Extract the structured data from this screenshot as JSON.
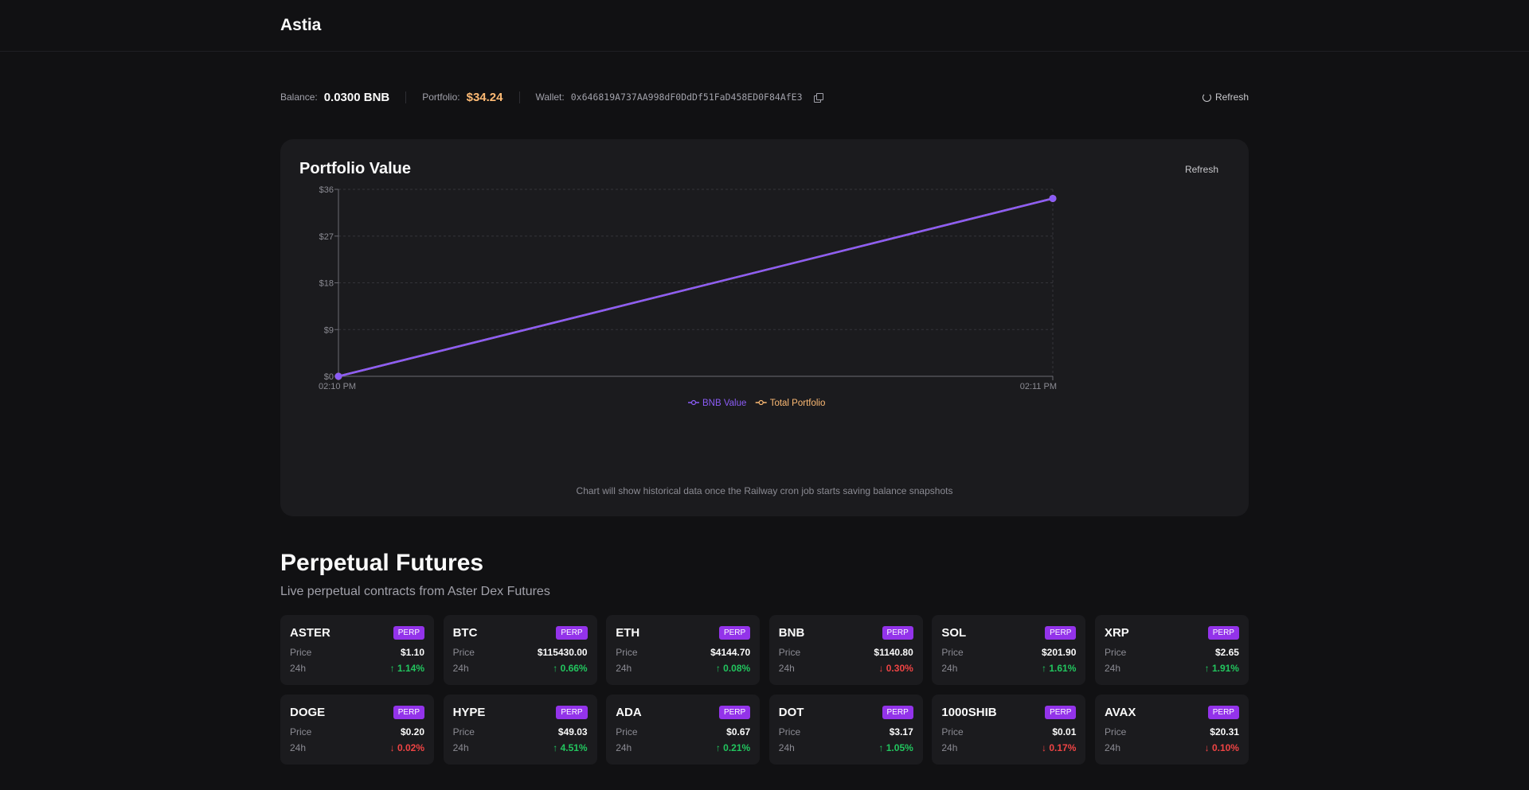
{
  "app": {
    "title": "Astia"
  },
  "stats": {
    "balance_label": "Balance:",
    "balance_value": "0.0300 BNB",
    "portfolio_label": "Portfolio:",
    "portfolio_value": "$34.24",
    "wallet_label": "Wallet:",
    "wallet_address": "0x646819A737AA998dF0DdDf51FaD458ED0F84AfE3",
    "refresh_label": "Refresh"
  },
  "portfolio_card": {
    "title": "Portfolio Value",
    "refresh_label": "Refresh",
    "note": "Chart will show historical data once the Railway cron job starts saving balance snapshots"
  },
  "chart_data": {
    "type": "line",
    "x": [
      "02:10 PM",
      "02:11 PM"
    ],
    "series": [
      {
        "name": "BNB Value",
        "color": "#8b5cf6",
        "values": [
          0,
          34.24
        ]
      },
      {
        "name": "Total Portfolio",
        "color": "#fdba74",
        "values": [
          0,
          34.24
        ]
      }
    ],
    "yticks": [
      "$0",
      "$9",
      "$18",
      "$27",
      "$36"
    ],
    "ylim": [
      0,
      36
    ],
    "grid": true,
    "legend": "bottom-center"
  },
  "futures": {
    "title": "Perpetual Futures",
    "subtitle": "Live perpetual contracts from Aster Dex Futures",
    "price_label": "Price",
    "change_label": "24h",
    "badge": "PERP",
    "markets": [
      {
        "symbol": "ASTER",
        "price": "$1.10",
        "change": "↑ 1.14%",
        "direction": "up"
      },
      {
        "symbol": "BTC",
        "price": "$115430.00",
        "change": "↑ 0.66%",
        "direction": "up"
      },
      {
        "symbol": "ETH",
        "price": "$4144.70",
        "change": "↑ 0.08%",
        "direction": "up"
      },
      {
        "symbol": "BNB",
        "price": "$1140.80",
        "change": "↓ 0.30%",
        "direction": "down"
      },
      {
        "symbol": "SOL",
        "price": "$201.90",
        "change": "↑ 1.61%",
        "direction": "up"
      },
      {
        "symbol": "XRP",
        "price": "$2.65",
        "change": "↑ 1.91%",
        "direction": "up"
      },
      {
        "symbol": "DOGE",
        "price": "$0.20",
        "change": "↓ 0.02%",
        "direction": "down"
      },
      {
        "symbol": "HYPE",
        "price": "$49.03",
        "change": "↑ 4.51%",
        "direction": "up"
      },
      {
        "symbol": "ADA",
        "price": "$0.67",
        "change": "↑ 0.21%",
        "direction": "up"
      },
      {
        "symbol": "DOT",
        "price": "$3.17",
        "change": "↑ 1.05%",
        "direction": "up"
      },
      {
        "symbol": "1000SHIB",
        "price": "$0.01",
        "change": "↓ 0.17%",
        "direction": "down"
      },
      {
        "symbol": "AVAX",
        "price": "$20.31",
        "change": "↓ 0.10%",
        "direction": "down"
      }
    ]
  }
}
